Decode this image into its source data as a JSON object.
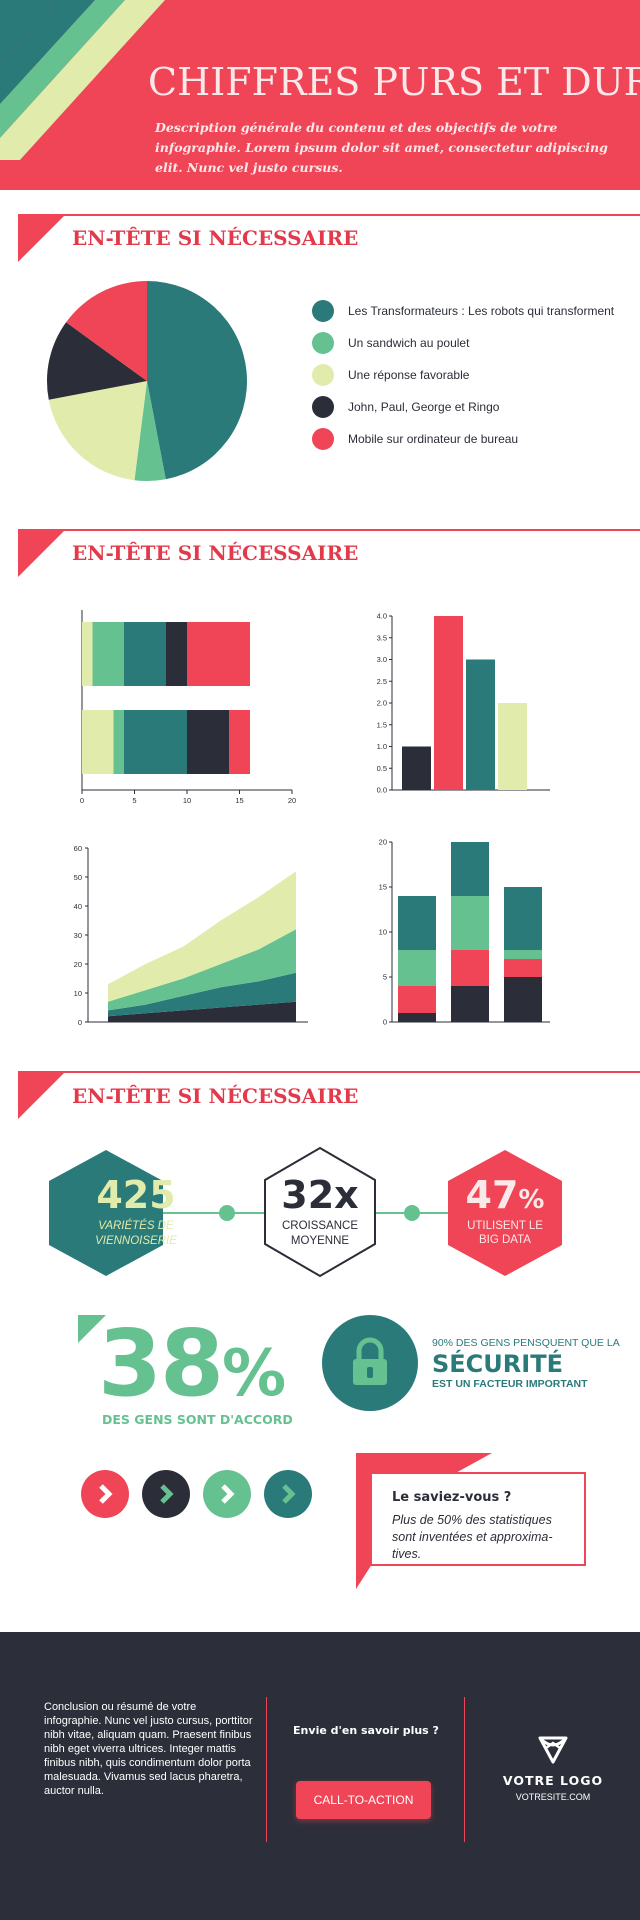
{
  "header": {
    "title": "CHIFFRES PURS ET DURS",
    "description": "Description générale du contenu et des objectifs de votre infographie. Lorem ipsum dolor sit amet, consectetur adipiscing elit. Nunc vel justo cursus."
  },
  "colors": {
    "red": "#ef4556",
    "teal": "#2a7a7a",
    "green": "#66c191",
    "cream": "#e1ebab",
    "navy": "#2b2e38"
  },
  "sections": [
    {
      "title": "EN-TÊTE SI NÉCESSAIRE"
    },
    {
      "title": "EN-TÊTE SI NÉCESSAIRE"
    },
    {
      "title": "EN-TÊTE SI NÉCESSAIRE"
    }
  ],
  "chart_data": [
    {
      "type": "pie",
      "slices": [
        {
          "label": "Les Transformateurs : Les robots qui transforment",
          "value": 47,
          "color": "#2a7a7a"
        },
        {
          "label": "Un sandwich au poulet",
          "value": 5,
          "color": "#66c191"
        },
        {
          "label": "Une réponse favorable",
          "value": 20,
          "color": "#e1ebab"
        },
        {
          "label": "John, Paul, George et Ringo",
          "value": 13,
          "color": "#2b2e38"
        },
        {
          "label": "Mobile sur ordinateur de bureau",
          "value": 15,
          "color": "#ef4556"
        }
      ]
    },
    {
      "type": "bar",
      "orientation": "horizontal",
      "stacked": true,
      "xlim": [
        0,
        20
      ],
      "x_ticks": [
        "0",
        "5",
        "10",
        "15",
        "20"
      ],
      "series": [
        {
          "color": "#e1ebab",
          "values": [
            1,
            3
          ]
        },
        {
          "color": "#66c191",
          "values": [
            3,
            1
          ]
        },
        {
          "color": "#2a7a7a",
          "values": [
            4,
            6
          ]
        },
        {
          "color": "#2b2e38",
          "values": [
            2,
            4
          ]
        },
        {
          "color": "#ef4556",
          "values": [
            6,
            2
          ]
        }
      ]
    },
    {
      "type": "bar",
      "categories": [
        "1",
        "2",
        "3",
        "4"
      ],
      "values": [
        1.0,
        4.0,
        3.0,
        2.0
      ],
      "colors": [
        "#2b2e38",
        "#ef4556",
        "#2a7a7a",
        "#e1ebab"
      ],
      "ylim": [
        0,
        4
      ],
      "y_ticks": [
        "0.0",
        "0.5",
        "1.0",
        "1.5",
        "2.0",
        "2.5",
        "3.0",
        "3.5",
        "4.0"
      ]
    },
    {
      "type": "area",
      "stacked": true,
      "x": [
        0,
        1,
        2,
        3,
        4,
        5
      ],
      "ylim": [
        0,
        60
      ],
      "y_ticks": [
        "0",
        "10",
        "20",
        "30",
        "40",
        "50",
        "60"
      ],
      "series": [
        {
          "color": "#2b2e38",
          "values": [
            2,
            3,
            4,
            5,
            6,
            7
          ]
        },
        {
          "color": "#2a7a7a",
          "values": [
            2,
            3,
            5,
            7,
            8,
            10
          ]
        },
        {
          "color": "#66c191",
          "values": [
            3,
            5,
            6,
            8,
            11,
            15
          ]
        },
        {
          "color": "#e1ebab",
          "values": [
            6,
            9,
            11,
            15,
            18,
            20
          ]
        }
      ]
    },
    {
      "type": "bar",
      "stacked": true,
      "categories": [
        "1",
        "2",
        "3"
      ],
      "ylim": [
        0,
        20
      ],
      "y_ticks": [
        "0",
        "5",
        "10",
        "15",
        "20"
      ],
      "series": [
        {
          "color": "#2b2e38",
          "values": [
            1,
            4,
            5
          ]
        },
        {
          "color": "#ef4556",
          "values": [
            3,
            4,
            2
          ]
        },
        {
          "color": "#66c191",
          "values": [
            4,
            6,
            1
          ]
        },
        {
          "color": "#2a7a7a",
          "values": [
            6,
            6,
            7
          ]
        }
      ]
    }
  ],
  "stats": {
    "hex1": {
      "number": "425",
      "label1": "VARIÉTÉS DE",
      "label2": "VIENNOISERIE"
    },
    "hex2": {
      "number": "32x",
      "label1": "CROISSANCE",
      "label2": "MOYENNE"
    },
    "hex3": {
      "number": "47",
      "pct": "%",
      "label1": "UTILISENT LE",
      "label2": "BIG DATA"
    },
    "agree": {
      "number": "38",
      "pct": "%",
      "label": "DES GENS SONT D'ACCORD"
    },
    "security": {
      "line1": "90% DES GENS PENSQUENT QUE LA",
      "line2": "SÉCURITÉ",
      "line3": "EST UN FACTEUR IMPORTANT",
      "icon": "lock-icon"
    }
  },
  "arrow_buttons": [
    {
      "color": "#ef4556",
      "icon": "chevron-right-icon"
    },
    {
      "color": "#2b2e38",
      "icon": "chevron-right-icon"
    },
    {
      "color": "#66c191",
      "icon": "chevron-right-icon"
    },
    {
      "color": "#2a7a7a",
      "icon": "chevron-right-icon"
    }
  ],
  "callout": {
    "title": "Le saviez-vous ?",
    "body": "Plus de 50% des statistiques sont inventées et approxima-tives."
  },
  "footer": {
    "conclusion": "Conclusion ou résumé de votre infographie. Nunc vel justo cursus, porttitor nibh vitae, aliquam quam. Praesent finibus nibh eget viverra ultrices. Integer mattis finibus nibh, quis condimentum dolor porta malesuada. Vivamus sed lacus pharetra, auctor nulla.",
    "more": "Envie d'en savoir plus ?",
    "cta": "CALL-TO-ACTION",
    "logo": "VOTRE LOGO",
    "site": "VOTRESITE.COM"
  }
}
